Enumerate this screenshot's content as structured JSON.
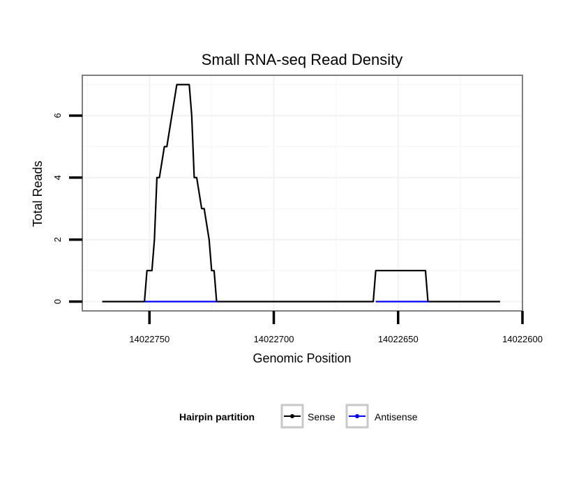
{
  "chart_data": {
    "type": "line",
    "title": "Small RNA-seq Read Density",
    "xlabel": "Genomic Position",
    "ylabel": "Total Reads",
    "xlim": [
      14022777,
      14022600
    ],
    "ylim": [
      -0.3,
      7.3
    ],
    "x_reversed": true,
    "x_ticks": [
      14022750,
      14022700,
      14022650,
      14022600
    ],
    "x_tick_labels": [
      "14022750",
      "14022700",
      "14022650",
      "14022600"
    ],
    "y_ticks": [
      0,
      2,
      4,
      6
    ],
    "y_tick_labels": [
      "0",
      "2",
      "4",
      "6"
    ],
    "grid": true,
    "legend": {
      "title": "Hairpin partition",
      "position": "bottom",
      "entries": [
        {
          "label": "Sense",
          "color": "#000000"
        },
        {
          "label": "Antisense",
          "color": "#0000ff"
        }
      ]
    },
    "series": [
      {
        "name": "Sense",
        "color": "#000000",
        "x": [
          14022769,
          14022752,
          14022751,
          14022749,
          14022748,
          14022747,
          14022746,
          14022744,
          14022743,
          14022739,
          14022734,
          14022733,
          14022732,
          14022731,
          14022729,
          14022728,
          14022726,
          14022725,
          14022724,
          14022723,
          14022660,
          14022659,
          14022639,
          14022638,
          14022609
        ],
        "y": [
          0,
          0,
          1,
          1,
          2,
          4,
          4,
          5,
          5,
          7,
          7,
          6,
          4,
          4,
          3,
          3,
          2,
          1,
          1,
          0,
          0,
          1,
          1,
          0,
          0
        ]
      },
      {
        "name": "Antisense",
        "color": "#0000ff",
        "x": [
          14022752,
          14022723,
          14022659,
          14022638
        ],
        "y": [
          0,
          0,
          0,
          0
        ],
        "segments": [
          [
            0,
            1
          ],
          [
            2,
            3
          ]
        ]
      }
    ]
  }
}
